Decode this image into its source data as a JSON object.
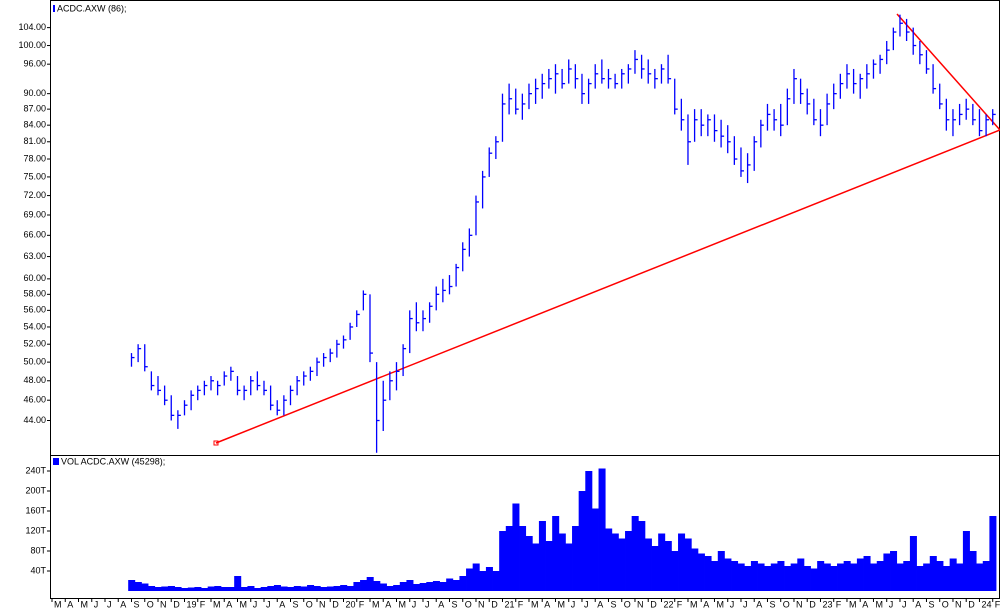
{
  "chart_data": [
    {
      "type": "ohlc",
      "title": "ACDC.AXW (86);",
      "color": "#0000ff",
      "log_scale": true,
      "xlim": [
        0,
        71.55
      ],
      "ylim": [
        40.8,
        110
      ],
      "yticks": [
        {
          "value": 104,
          "label": "104.00"
        },
        {
          "value": 100,
          "label": "100.00"
        },
        {
          "value": 96,
          "label": "96.00"
        },
        {
          "value": 90,
          "label": "90.00"
        },
        {
          "value": 87,
          "label": "87.00"
        },
        {
          "value": 84,
          "label": "84.00"
        },
        {
          "value": 81,
          "label": "81.00"
        },
        {
          "value": 78,
          "label": "78.00"
        },
        {
          "value": 75,
          "label": "75.00"
        },
        {
          "value": 72,
          "label": "72.00"
        },
        {
          "value": 69,
          "label": "69.00"
        },
        {
          "value": 66,
          "label": "66.00"
        },
        {
          "value": 63,
          "label": "63.00"
        },
        {
          "value": 60,
          "label": "60.00"
        },
        {
          "value": 58,
          "label": "58.00"
        },
        {
          "value": 56,
          "label": "56.00"
        },
        {
          "value": 54,
          "label": "54.00"
        },
        {
          "value": 52,
          "label": "52.00"
        },
        {
          "value": 50,
          "label": "50.00"
        },
        {
          "value": 48,
          "label": "48.00"
        },
        {
          "value": 46,
          "label": "46.00"
        },
        {
          "value": 44,
          "label": "44.00"
        }
      ],
      "x": [
        6,
        6.5,
        7,
        7.5,
        8,
        8.5,
        9,
        9.5,
        10,
        10.5,
        11,
        11.5,
        12,
        12.5,
        13,
        13.5,
        14,
        14.5,
        15,
        15.5,
        16,
        16.5,
        17,
        17.5,
        18,
        18.5,
        19,
        19.5,
        20,
        20.5,
        21,
        21.5,
        22,
        22.5,
        23,
        23.5,
        24,
        24.5,
        25,
        25.5,
        26,
        26.5,
        27,
        27.5,
        28,
        28.5,
        29,
        29.5,
        30,
        30.5,
        31,
        31.5,
        32,
        32.5,
        33,
        33.5,
        34,
        34.5,
        35,
        35.5,
        36,
        36.5,
        37,
        37.5,
        38,
        38.5,
        39,
        39.5,
        40,
        40.5,
        41,
        41.5,
        42,
        42.5,
        43,
        43.5,
        44,
        44.5,
        45,
        45.5,
        46,
        46.5,
        47,
        47.5,
        48,
        48.5,
        49,
        49.5,
        50,
        50.5,
        51,
        51.5,
        52,
        52.5,
        53,
        53.5,
        54,
        54.5,
        55,
        55.5,
        56,
        56.5,
        57,
        57.5,
        58,
        58.5,
        59,
        59.5,
        60,
        60.5,
        61,
        61.5,
        62,
        62.5,
        63,
        63.5,
        64,
        64.5,
        65,
        65.5,
        66,
        66.5,
        67,
        67.5,
        68,
        68.5,
        69,
        69.5,
        70,
        70.5,
        71
      ],
      "high": [
        51,
        52,
        52,
        49,
        48.5,
        47.5,
        46.5,
        45,
        46,
        47,
        47.5,
        48,
        48.5,
        48,
        49,
        49.5,
        48.5,
        47.5,
        48.5,
        49,
        48,
        47.5,
        46,
        46.5,
        47.5,
        48.5,
        49,
        49.5,
        50.5,
        51,
        51.5,
        52.5,
        53,
        54.5,
        56,
        58.5,
        58,
        50,
        48,
        49,
        50,
        52,
        56,
        57,
        56,
        57,
        59,
        60,
        60.5,
        62,
        65,
        67,
        72,
        76,
        80,
        82,
        90,
        92,
        91,
        90,
        92,
        93,
        94,
        95,
        96,
        95,
        97,
        96,
        94,
        93,
        96,
        97,
        95,
        94,
        95,
        96,
        99,
        98,
        97,
        95,
        96,
        98,
        93,
        89,
        86,
        87,
        87,
        86,
        86,
        85,
        84,
        82,
        80,
        79,
        82,
        85,
        88,
        87,
        88,
        91,
        95,
        93,
        91,
        89,
        87,
        90,
        92,
        94,
        96,
        95,
        94,
        96,
        97,
        98,
        101,
        104,
        107,
        106,
        104,
        101,
        99,
        96,
        92,
        89,
        87,
        88,
        89,
        88,
        87,
        86,
        87
      ],
      "low": [
        49.5,
        50,
        49,
        47,
        46.5,
        45.5,
        44,
        43.2,
        44.5,
        45,
        46,
        46.5,
        47,
        46.5,
        47.5,
        48,
        46.5,
        46,
        46.5,
        47,
        46.5,
        45,
        44.5,
        44.5,
        45.5,
        46.5,
        47.5,
        48,
        48.5,
        49.5,
        50,
        50.5,
        51.5,
        52.5,
        54,
        56,
        50,
        41,
        43,
        46,
        47,
        48.5,
        51,
        53.5,
        53.5,
        54.5,
        56,
        57,
        58,
        59,
        61,
        63,
        66,
        70,
        75,
        78,
        81,
        86,
        86,
        85,
        87,
        88,
        89,
        91,
        90,
        91,
        92,
        91,
        88,
        88,
        91,
        92,
        91,
        91,
        91,
        92,
        94,
        93,
        92,
        91,
        92,
        92,
        86,
        83,
        77,
        81,
        82,
        82,
        81,
        80,
        79,
        77,
        75,
        74,
        76,
        80,
        83,
        83,
        82,
        84,
        88,
        88,
        86,
        84,
        82,
        84,
        87,
        89,
        91,
        90,
        89,
        91,
        93,
        94,
        96,
        99,
        102,
        101,
        98,
        96,
        94,
        90,
        87,
        83,
        82,
        84,
        85,
        84,
        82,
        82,
        84
      ],
      "close": [
        50.5,
        51.5,
        49.5,
        47.5,
        47,
        46,
        44.5,
        44.5,
        45.5,
        46.5,
        47,
        47.5,
        48,
        47.5,
        48.5,
        49,
        47,
        47,
        48,
        47.5,
        47,
        45.5,
        45,
        46,
        47,
        48,
        48.5,
        49,
        50,
        50.5,
        51,
        52,
        52.5,
        54,
        55.5,
        58,
        51,
        44,
        46,
        48,
        49,
        51.5,
        55,
        54.5,
        55,
        56.5,
        58,
        58.5,
        59,
        61.5,
        64,
        66,
        71,
        75,
        79,
        81,
        88,
        89,
        87,
        88,
        90,
        91,
        92,
        93,
        94,
        92,
        95,
        93,
        90,
        92,
        94,
        93,
        93,
        92,
        94,
        95,
        97,
        95,
        94,
        93,
        95,
        93,
        87,
        85,
        81,
        85,
        84,
        85,
        83,
        82,
        81,
        78,
        76,
        77,
        81,
        84,
        86,
        85,
        84,
        89,
        93,
        90,
        88,
        85,
        84,
        88,
        90,
        92,
        94,
        92,
        93,
        94,
        96,
        97,
        99,
        103,
        105,
        103,
        100,
        98,
        95,
        91,
        88,
        85,
        85,
        86,
        87,
        85,
        83,
        85,
        86
      ]
    },
    {
      "type": "bar",
      "title": "VOL ACDC.AXW (45298);",
      "color": "#0000ff",
      "xlim": [
        0,
        71.55
      ],
      "ylim": [
        0,
        268
      ],
      "yticks": [
        {
          "value": 240,
          "label": "240T"
        },
        {
          "value": 200,
          "label": "200T"
        },
        {
          "value": 160,
          "label": "160T"
        },
        {
          "value": 120,
          "label": "120T"
        },
        {
          "value": 80,
          "label": "80T"
        },
        {
          "value": 40,
          "label": "40T"
        }
      ],
      "xticks": [
        {
          "value": 0,
          "label": "M"
        },
        {
          "value": 1,
          "label": "A"
        },
        {
          "value": 2,
          "label": "M"
        },
        {
          "value": 3,
          "label": "J"
        },
        {
          "value": 4,
          "label": "J"
        },
        {
          "value": 5,
          "label": "A"
        },
        {
          "value": 6,
          "label": "S"
        },
        {
          "value": 7,
          "label": "O"
        },
        {
          "value": 8,
          "label": "N"
        },
        {
          "value": 9,
          "label": "D"
        },
        {
          "value": 10,
          "label": "19"
        },
        {
          "value": 11,
          "label": "F"
        },
        {
          "value": 12,
          "label": "M"
        },
        {
          "value": 13,
          "label": "A"
        },
        {
          "value": 14,
          "label": "M"
        },
        {
          "value": 15,
          "label": "J"
        },
        {
          "value": 16,
          "label": "J"
        },
        {
          "value": 17,
          "label": "A"
        },
        {
          "value": 18,
          "label": "S"
        },
        {
          "value": 19,
          "label": "O"
        },
        {
          "value": 20,
          "label": "N"
        },
        {
          "value": 21,
          "label": "D"
        },
        {
          "value": 22,
          "label": "20"
        },
        {
          "value": 23,
          "label": "F"
        },
        {
          "value": 24,
          "label": "M"
        },
        {
          "value": 25,
          "label": "A"
        },
        {
          "value": 26,
          "label": "M"
        },
        {
          "value": 27,
          "label": "J"
        },
        {
          "value": 28,
          "label": "J"
        },
        {
          "value": 29,
          "label": "A"
        },
        {
          "value": 30,
          "label": "S"
        },
        {
          "value": 31,
          "label": "O"
        },
        {
          "value": 32,
          "label": "N"
        },
        {
          "value": 33,
          "label": "D"
        },
        {
          "value": 34,
          "label": "21"
        },
        {
          "value": 35,
          "label": "F"
        },
        {
          "value": 36,
          "label": "M"
        },
        {
          "value": 37,
          "label": "A"
        },
        {
          "value": 38,
          "label": "M"
        },
        {
          "value": 39,
          "label": "J"
        },
        {
          "value": 40,
          "label": "J"
        },
        {
          "value": 41,
          "label": "A"
        },
        {
          "value": 42,
          "label": "S"
        },
        {
          "value": 43,
          "label": "O"
        },
        {
          "value": 44,
          "label": "N"
        },
        {
          "value": 45,
          "label": "D"
        },
        {
          "value": 46,
          "label": "22"
        },
        {
          "value": 47,
          "label": "F"
        },
        {
          "value": 48,
          "label": "M"
        },
        {
          "value": 49,
          "label": "A"
        },
        {
          "value": 50,
          "label": "M"
        },
        {
          "value": 51,
          "label": "J"
        },
        {
          "value": 52,
          "label": "J"
        },
        {
          "value": 53,
          "label": "A"
        },
        {
          "value": 54,
          "label": "S"
        },
        {
          "value": 55,
          "label": "O"
        },
        {
          "value": 56,
          "label": "N"
        },
        {
          "value": 57,
          "label": "D"
        },
        {
          "value": 58,
          "label": "23"
        },
        {
          "value": 59,
          "label": "F"
        },
        {
          "value": 60,
          "label": "M"
        },
        {
          "value": 61,
          "label": "A"
        },
        {
          "value": 62,
          "label": "M"
        },
        {
          "value": 63,
          "label": "J"
        },
        {
          "value": 64,
          "label": "J"
        },
        {
          "value": 65,
          "label": "A"
        },
        {
          "value": 66,
          "label": "S"
        },
        {
          "value": 67,
          "label": "O"
        },
        {
          "value": 68,
          "label": "N"
        },
        {
          "value": 69,
          "label": "D"
        },
        {
          "value": 70,
          "label": "24"
        },
        {
          "value": 71,
          "label": "F"
        }
      ],
      "x": [
        6,
        6.5,
        7,
        7.5,
        8,
        8.5,
        9,
        9.5,
        10,
        10.5,
        11,
        11.5,
        12,
        12.5,
        13,
        13.5,
        14,
        14.5,
        15,
        15.5,
        16,
        16.5,
        17,
        17.5,
        18,
        18.5,
        19,
        19.5,
        20,
        20.5,
        21,
        21.5,
        22,
        22.5,
        23,
        23.5,
        24,
        24.5,
        25,
        25.5,
        26,
        26.5,
        27,
        27.5,
        28,
        28.5,
        29,
        29.5,
        30,
        30.5,
        31,
        31.5,
        32,
        32.5,
        33,
        33.5,
        34,
        34.5,
        35,
        35.5,
        36,
        36.5,
        37,
        37.5,
        38,
        38.5,
        39,
        39.5,
        40,
        40.5,
        41,
        41.5,
        42,
        42.5,
        43,
        43.5,
        44,
        44.5,
        45,
        45.5,
        46,
        46.5,
        47,
        47.5,
        48,
        48.5,
        49,
        49.5,
        50,
        50.5,
        51,
        51.5,
        52,
        52.5,
        53,
        53.5,
        54,
        54.5,
        55,
        55.5,
        56,
        56.5,
        57,
        57.5,
        58,
        58.5,
        59,
        59.5,
        60,
        60.5,
        61,
        61.5,
        62,
        62.5,
        63,
        63.5,
        64,
        64.5,
        65,
        65.5,
        66,
        66.5,
        67,
        67.5,
        68,
        68.5,
        69,
        69.5,
        70,
        70.5,
        71
      ],
      "values": [
        22,
        18,
        15,
        10,
        8,
        9,
        10,
        8,
        6,
        7,
        8,
        6,
        9,
        10,
        8,
        8,
        30,
        8,
        10,
        6,
        8,
        10,
        12,
        9,
        8,
        10,
        9,
        12,
        10,
        8,
        9,
        10,
        12,
        10,
        18,
        22,
        28,
        20,
        15,
        10,
        12,
        18,
        22,
        14,
        16,
        18,
        20,
        18,
        25,
        22,
        30,
        45,
        55,
        40,
        48,
        40,
        120,
        130,
        175,
        130,
        110,
        95,
        140,
        100,
        150,
        115,
        95,
        130,
        200,
        240,
        165,
        245,
        125,
        115,
        105,
        120,
        150,
        140,
        105,
        90,
        115,
        100,
        80,
        115,
        105,
        85,
        75,
        70,
        60,
        80,
        65,
        60,
        55,
        50,
        60,
        55,
        50,
        55,
        60,
        50,
        55,
        65,
        50,
        45,
        60,
        55,
        50,
        55,
        60,
        55,
        65,
        70,
        55,
        60,
        75,
        80,
        55,
        60,
        110,
        50,
        55,
        70,
        60,
        50,
        65,
        55,
        120,
        80,
        55,
        60,
        150
      ]
    }
  ]
}
